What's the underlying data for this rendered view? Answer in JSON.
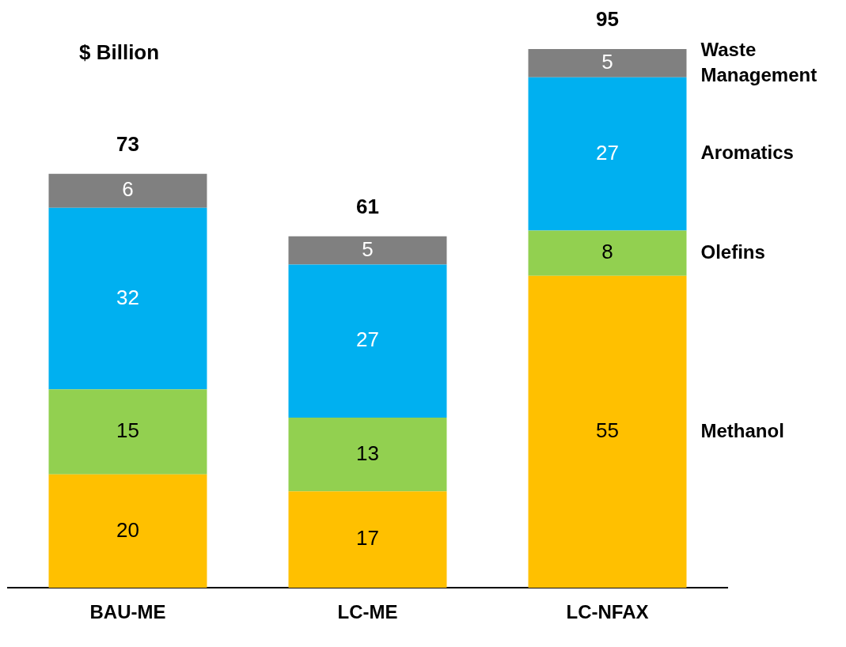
{
  "chart_data": {
    "type": "bar",
    "stacked": true,
    "title": "$ Billion",
    "categories": [
      "BAU-ME",
      "LC-ME",
      "LC-NFAX"
    ],
    "series": [
      {
        "name": "Methanol",
        "color": "#ffc000",
        "values": [
          20,
          17,
          55
        ]
      },
      {
        "name": "Olefins",
        "color": "#92d050",
        "values": [
          15,
          13,
          8
        ]
      },
      {
        "name": "Aromatics",
        "color": "#00b0f0",
        "values": [
          32,
          27,
          27
        ]
      },
      {
        "name": "Waste Management",
        "color": "#808080",
        "values": [
          6,
          5,
          5
        ]
      }
    ],
    "data_labels": true,
    "totals": [
      "73",
      "61",
      "95"
    ],
    "legend": false,
    "grid": false
  }
}
